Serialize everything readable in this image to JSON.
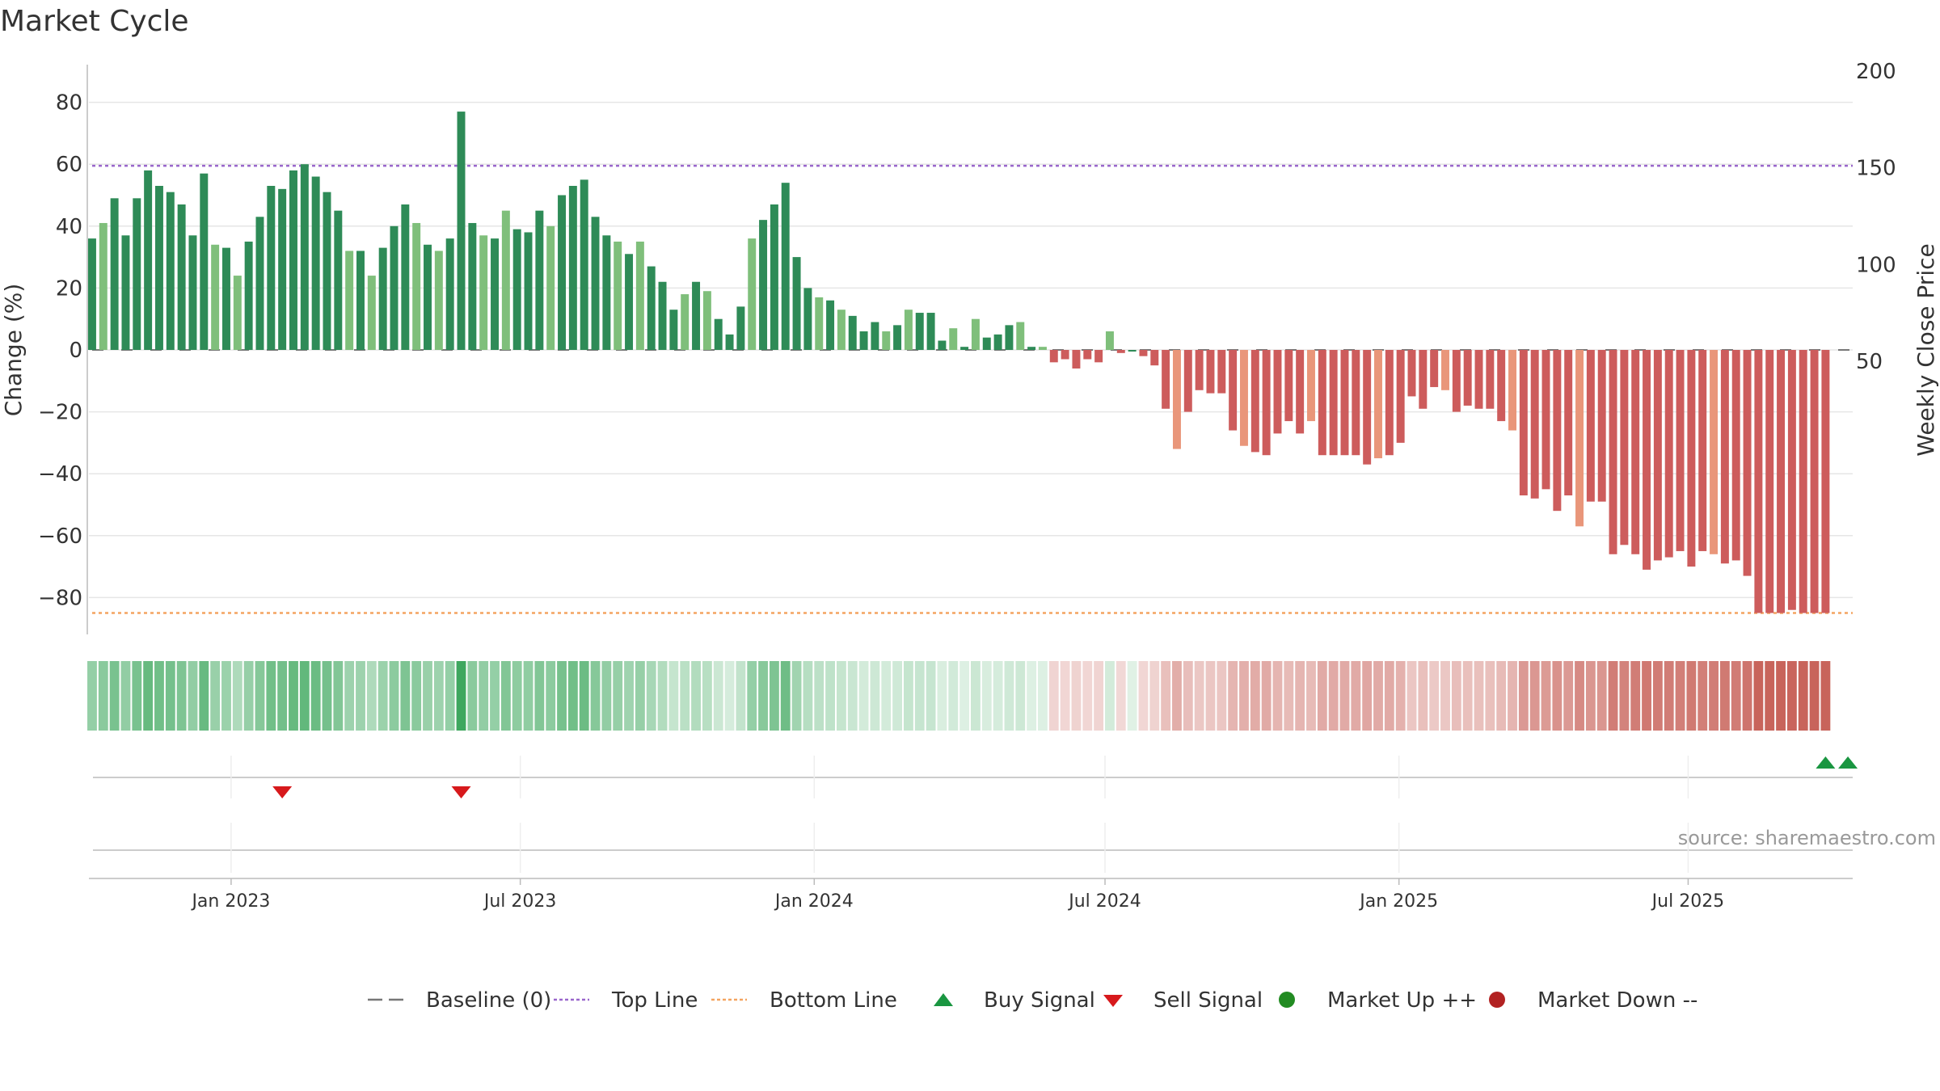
{
  "title": "Market Cycle",
  "source": "source: sharemaestro.com",
  "colors": {
    "up_strong": "#2e8b57",
    "up_light": "#7fbf7b",
    "down_strong": "#cd5c5c",
    "down_light": "#e9967a",
    "top_line": "#9966cc",
    "bottom_line": "#f4a460",
    "baseline": "#777777",
    "buy": "#1a9641",
    "sell": "#d7191c",
    "market_up": "#228b22",
    "market_down": "#b22222"
  },
  "legend": [
    {
      "label": "Baseline (0)",
      "type": "dash",
      "color": "#777777"
    },
    {
      "label": "Top Line",
      "type": "dot",
      "color": "#9966cc"
    },
    {
      "label": "Bottom Line",
      "type": "dot",
      "color": "#f4a460"
    },
    {
      "label": "Buy Signal",
      "type": "tri-up",
      "color": "#1a9641"
    },
    {
      "label": "Sell Signal",
      "type": "tri-down",
      "color": "#d7191c"
    },
    {
      "label": "Market Up ++",
      "type": "circle",
      "color": "#228b22"
    },
    {
      "label": "Market Down --",
      "type": "circle",
      "color": "#b22222"
    }
  ],
  "chart_data": {
    "type": "bar",
    "title": "Market Cycle",
    "ylabel": "Change (%)",
    "y2label": "Weekly Close Price",
    "ylim": [
      -92,
      93
    ],
    "y2lim": [
      14.1,
      207.5
    ],
    "yticks": [
      80,
      60,
      40,
      20,
      0,
      -20,
      -40,
      -60,
      -80
    ],
    "y2ticks": [
      200,
      150,
      100,
      50
    ],
    "xlim": [
      "2022-10-04",
      "2025-10-12"
    ],
    "xticks": [
      {
        "label": "Jan 2023",
        "date": "2023-01-01"
      },
      {
        "label": "Jul 2023",
        "date": "2023-07-01"
      },
      {
        "label": "Jan 2024",
        "date": "2024-01-01"
      },
      {
        "label": "Jul 2024",
        "date": "2024-07-01"
      },
      {
        "label": "Jan 2025",
        "date": "2025-01-01"
      },
      {
        "label": "Jul 2025",
        "date": "2025-07-01"
      }
    ],
    "top_line": 59.5,
    "bottom_line": -85,
    "baseline": 0,
    "start_date": "2022-10-06",
    "week_step_days": 7,
    "values": [
      36,
      41,
      49,
      37,
      49,
      58,
      53,
      51,
      47,
      37,
      57,
      34,
      33,
      24,
      35,
      43,
      53,
      52,
      58,
      60,
      56,
      51,
      45,
      32,
      32,
      24,
      33,
      40,
      47,
      41,
      34,
      32,
      36,
      77,
      41,
      37,
      36,
      45,
      39,
      38,
      45,
      40,
      50,
      53,
      55,
      43,
      37,
      35,
      31,
      35,
      27,
      22,
      13,
      18,
      22,
      19,
      10,
      5,
      14,
      36,
      42,
      47,
      54,
      30,
      20,
      17,
      16,
      13,
      11,
      6,
      9,
      6,
      8,
      13,
      12,
      12,
      3,
      7,
      1,
      10,
      4,
      5,
      8,
      9,
      1,
      1,
      -4,
      -3,
      -6,
      -3,
      -4,
      6,
      -1,
      0,
      -2,
      -5,
      -19,
      -32,
      -20,
      -13,
      -14,
      -14,
      -26,
      -31,
      -33,
      -34,
      -27,
      -23,
      -27,
      -23,
      -34,
      -34,
      -34,
      -34,
      -37,
      -35,
      -34,
      -30,
      -15,
      -19,
      -12,
      -13,
      -20,
      -18,
      -19,
      -19,
      -23,
      -26,
      -47,
      -48,
      -45,
      -52,
      -47,
      -57,
      -49,
      -49,
      -66,
      -63,
      -66,
      -71,
      -68,
      -67,
      -65,
      -70,
      -65,
      -66,
      -69,
      -68,
      -73,
      -85,
      -85,
      -85,
      -84,
      -85,
      -85,
      -85
    ],
    "sell_signals": [
      "2023-02-02",
      "2023-05-25"
    ],
    "buy_signals": [
      "2025-09-25",
      "2025-10-09"
    ]
  }
}
